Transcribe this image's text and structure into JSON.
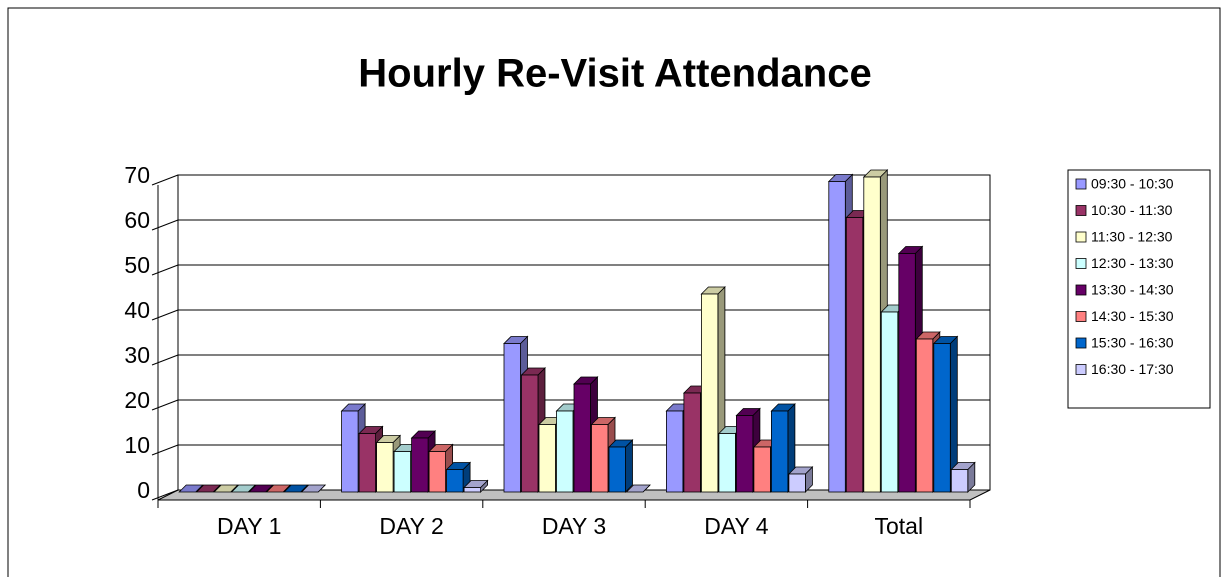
{
  "chart_data": {
    "type": "bar",
    "title": "Hourly Re-Visit Attendance",
    "categories": [
      "DAY 1",
      "DAY 2",
      "DAY 3",
      "DAY 4",
      "Total"
    ],
    "series": [
      {
        "name": "09:30 - 10:30",
        "color": "#9999ff",
        "values": [
          0,
          18,
          33,
          18,
          69
        ]
      },
      {
        "name": "10:30 - 11:30",
        "color": "#993366",
        "values": [
          0,
          13,
          26,
          22,
          61
        ]
      },
      {
        "name": "11:30 - 12:30",
        "color": "#ffffcc",
        "values": [
          0,
          11,
          15,
          44,
          70
        ]
      },
      {
        "name": "12:30 - 13:30",
        "color": "#ccffff",
        "values": [
          0,
          9,
          18,
          13,
          40
        ]
      },
      {
        "name": "13:30 - 14:30",
        "color": "#660066",
        "values": [
          0,
          12,
          24,
          17,
          53
        ]
      },
      {
        "name": "14:30 - 15:30",
        "color": "#ff8080",
        "values": [
          0,
          9,
          15,
          10,
          34
        ]
      },
      {
        "name": "15:30 - 16:30",
        "color": "#0066cc",
        "values": [
          0,
          5,
          10,
          18,
          33
        ]
      },
      {
        "name": "16:30 - 17:30",
        "color": "#ccccff",
        "values": [
          0,
          1,
          0,
          4,
          5
        ]
      }
    ],
    "ylim": [
      0,
      70
    ],
    "yticks": [
      0,
      10,
      20,
      30,
      40,
      50,
      60,
      70
    ],
    "grid": true,
    "legend": "right"
  }
}
